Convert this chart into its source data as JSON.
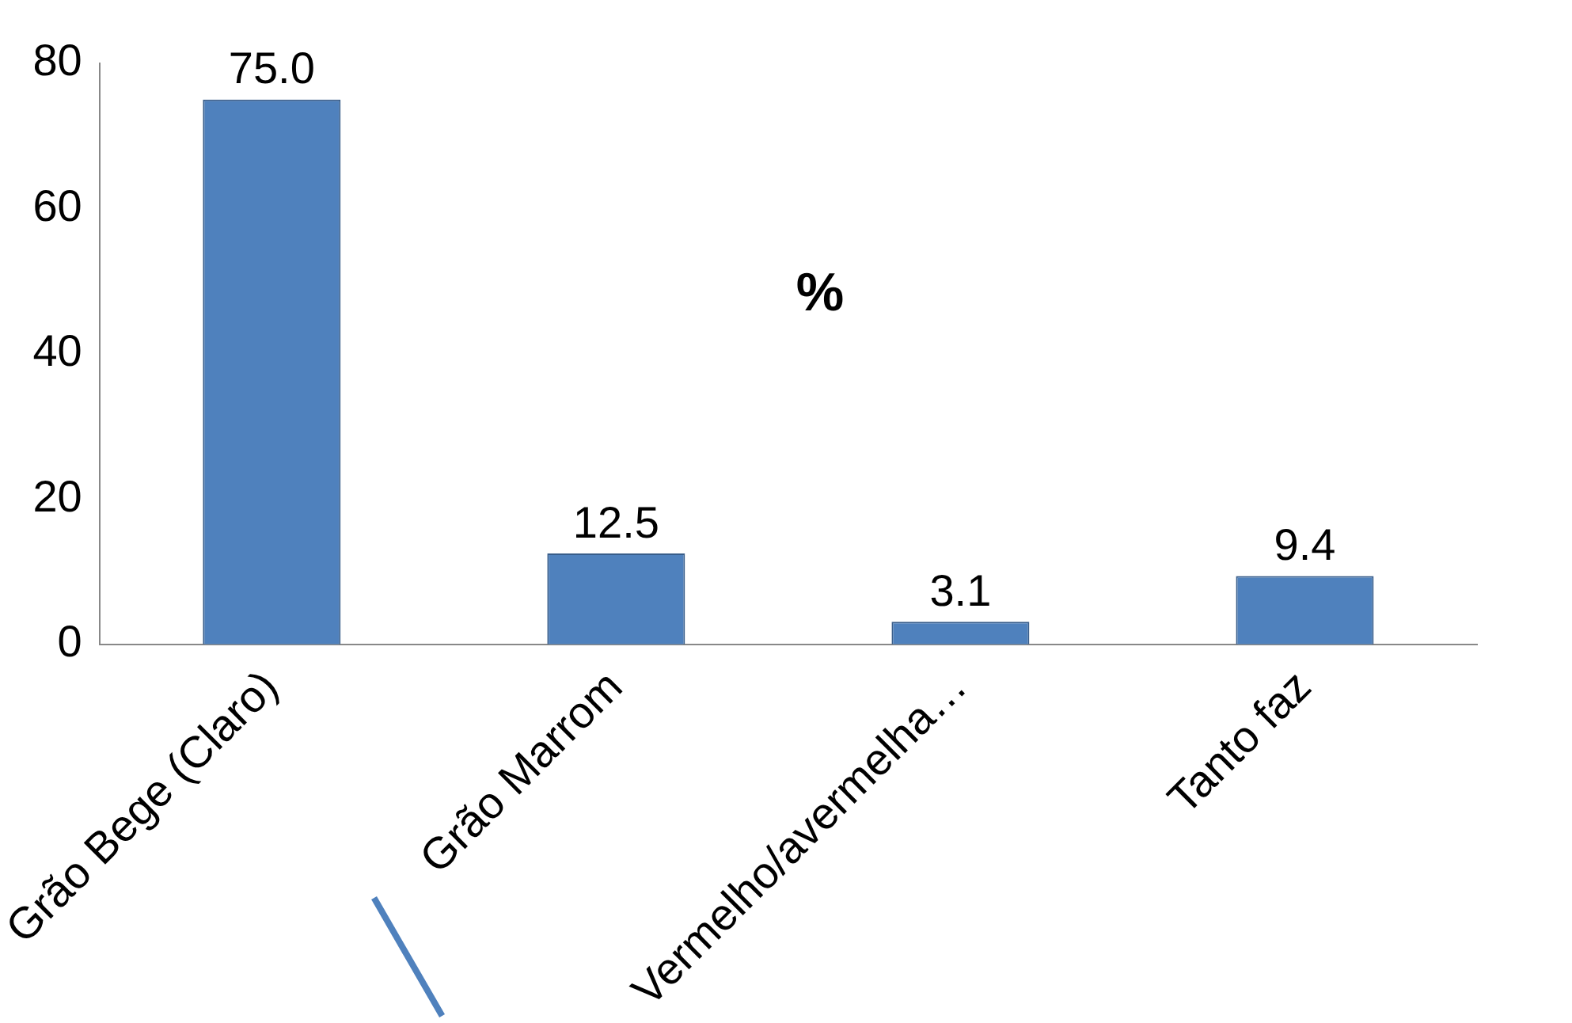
{
  "chart_data": {
    "type": "bar",
    "title": "%",
    "categories": [
      "Grão Bege (Claro)",
      "Grão Marrom",
      "Vermelho/avermelha…",
      "Tanto faz"
    ],
    "values": [
      75.0,
      12.5,
      3.1,
      9.4
    ],
    "color": "#4f81bd",
    "value_labels": [
      "75.0",
      "12.5",
      "3.1",
      "9.4"
    ],
    "ylim": [
      0,
      80
    ],
    "yticks": [
      0,
      20,
      40,
      60,
      80
    ],
    "grid": false,
    "legend": false
  }
}
